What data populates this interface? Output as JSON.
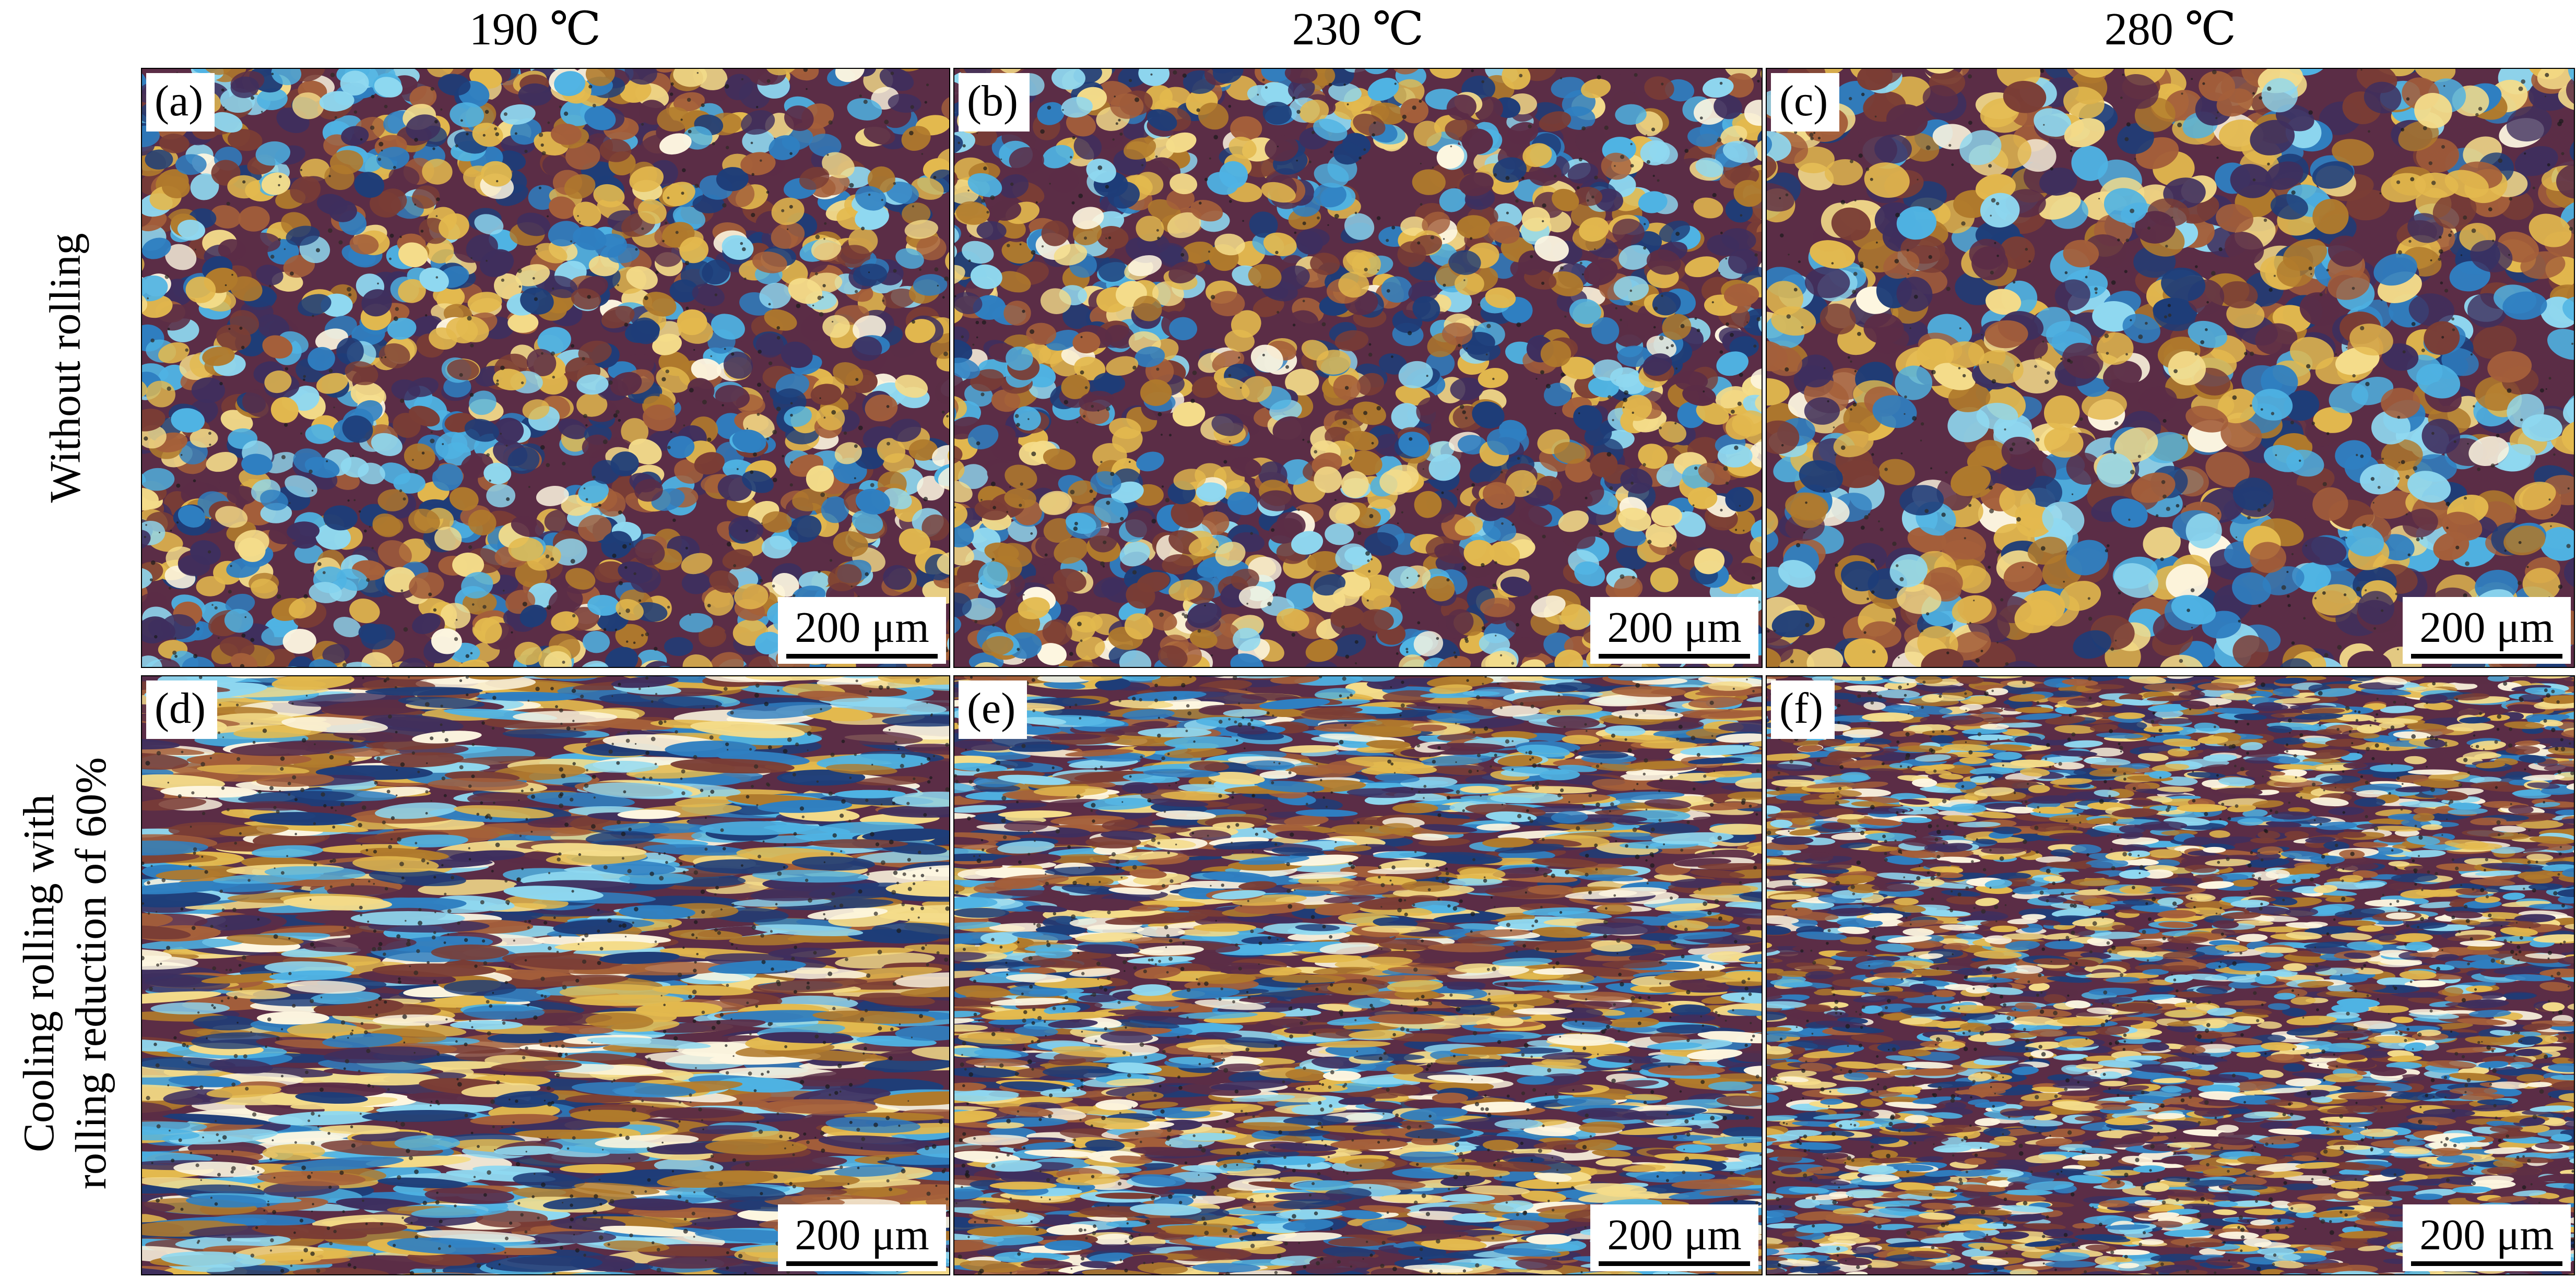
{
  "column_headers": [
    "190 ℃",
    "230 ℃",
    "280 ℃"
  ],
  "row_labels": [
    {
      "lines": [
        "Without rolling"
      ]
    },
    {
      "lines": [
        "Cooling rolling with",
        "rolling reduction of 60%"
      ]
    }
  ],
  "panels": [
    {
      "label": "(a)",
      "scale": "200 μm",
      "texture": "equiaxed",
      "grain_size": "fine"
    },
    {
      "label": "(b)",
      "scale": "200 μm",
      "texture": "equiaxed",
      "grain_size": "fine"
    },
    {
      "label": "(c)",
      "scale": "200 μm",
      "texture": "equiaxed",
      "grain_size": "coarse"
    },
    {
      "label": "(d)",
      "scale": "200 μm",
      "texture": "elongated",
      "grain_size": "coarse"
    },
    {
      "label": "(e)",
      "scale": "200 μm",
      "texture": "elongated",
      "grain_size": "fine"
    },
    {
      "label": "(f)",
      "scale": "200 μm",
      "texture": "elongated",
      "grain_size": "very fine"
    }
  ],
  "palette": [
    "#5b2d46",
    "#3e2f5e",
    "#7a3d35",
    "#b07a2c",
    "#e3b94e",
    "#f4dc8a",
    "#2f7fc1",
    "#4fb3e3",
    "#8fd8f0",
    "#1e3d78",
    "#fdf6e0",
    "#a45f3a"
  ]
}
